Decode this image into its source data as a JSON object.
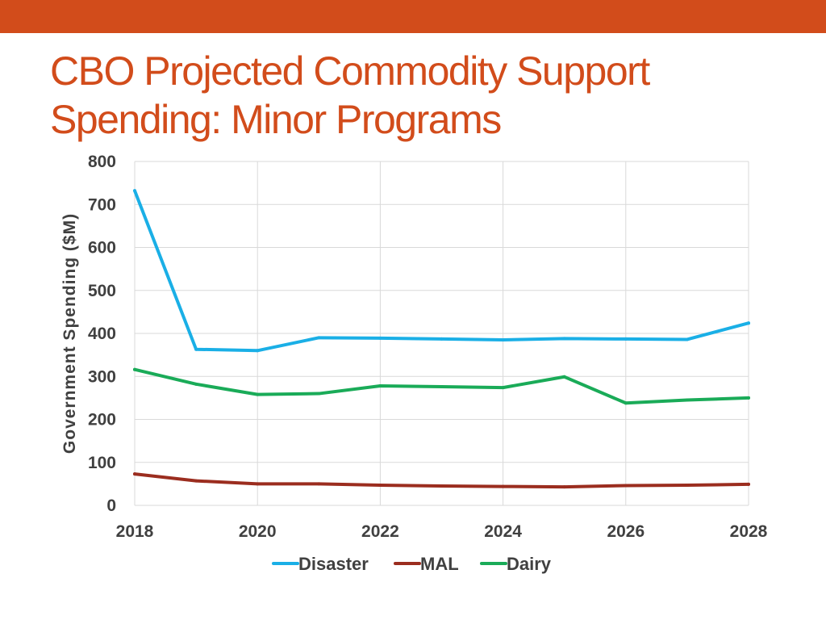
{
  "slide": {
    "title_line1": "CBO Projected Commodity Support",
    "title_line2": "Spending: Minor Programs",
    "accent_color": "#d24c1b"
  },
  "chart_data": {
    "type": "line",
    "title": "",
    "xlabel": "",
    "ylabel": "Government Spending ($M)",
    "x": [
      2018,
      2019,
      2020,
      2021,
      2022,
      2023,
      2024,
      2025,
      2026,
      2027,
      2028
    ],
    "xlim": [
      2018,
      2028
    ],
    "ylim": [
      0,
      800
    ],
    "x_ticks": [
      "2018",
      "2020",
      "2022",
      "2024",
      "2026",
      "2028"
    ],
    "y_ticks": [
      "0",
      "100",
      "200",
      "300",
      "400",
      "500",
      "600",
      "700",
      "800"
    ],
    "grid": true,
    "legend_position": "bottom",
    "series": [
      {
        "name": "Disaster",
        "color": "#1aafe6",
        "values": [
          732,
          363,
          360,
          390,
          389,
          387,
          385,
          388,
          387,
          386,
          424
        ]
      },
      {
        "name": "MAL",
        "color": "#9b2d1f",
        "values": [
          73,
          57,
          50,
          50,
          47,
          45,
          44,
          43,
          46,
          47,
          49
        ]
      },
      {
        "name": "Dairy",
        "color": "#1aab58",
        "values": [
          316,
          282,
          258,
          260,
          278,
          276,
          274,
          299,
          238,
          245,
          250
        ]
      }
    ]
  }
}
